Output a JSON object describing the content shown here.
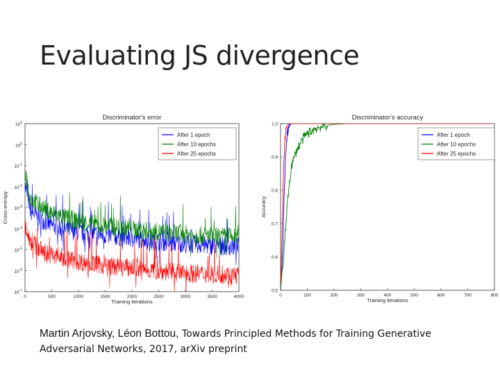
{
  "slide": {
    "title": "Evaluating JS divergence"
  },
  "citation": {
    "authors": "Martin Arjovsky, Léon Bottou,",
    "title_line1": " Towards Principled Methods for Training Generative",
    "title_line2": "Adversarial Networks, 2017, arXiv preprint"
  },
  "chart_data": [
    {
      "type": "line",
      "title": "Discriminator's error",
      "xlabel": "Training iterations",
      "ylabel": "Cross-entropy",
      "xlim": [
        0,
        4000
      ],
      "ylog": true,
      "ylim_exp": [
        -7,
        1
      ],
      "x_ticks": [
        "0",
        "500",
        "1000",
        "1500",
        "2000",
        "2500",
        "3000",
        "3500",
        "4000"
      ],
      "y_ticks": [
        "10^1",
        "10^0",
        "10^-1",
        "10^-2",
        "10^-3",
        "10^-4",
        "10^-5",
        "10^-6",
        "10^-7"
      ],
      "legend_position": "top-right",
      "series": [
        {
          "name": "After 1 epoch",
          "color": "#0000ff",
          "x": [
            0,
            100,
            250,
            500,
            1000,
            1500,
            2000,
            2500,
            3000,
            3500,
            4000
          ],
          "log10_values": [
            -2.0,
            -3.3,
            -3.6,
            -4.0,
            -4.3,
            -4.45,
            -4.6,
            -4.75,
            -4.85,
            -4.95,
            -5.0
          ]
        },
        {
          "name": "After 10 epochs",
          "color": "#008000",
          "x": [
            0,
            100,
            250,
            500,
            1000,
            1500,
            2000,
            2500,
            3000,
            3500,
            4000
          ],
          "log10_values": [
            -1.3,
            -2.7,
            -3.0,
            -3.4,
            -3.8,
            -4.0,
            -4.15,
            -4.3,
            -4.4,
            -4.5,
            -4.55
          ]
        },
        {
          "name": "After 25 epochs",
          "color": "#ff0000",
          "x": [
            0,
            100,
            250,
            500,
            1000,
            1500,
            2000,
            2500,
            3000,
            3500,
            4000
          ],
          "log10_values": [
            -4.0,
            -4.7,
            -5.1,
            -5.4,
            -5.7,
            -5.9,
            -6.0,
            -6.15,
            -6.25,
            -6.3,
            -6.35
          ]
        }
      ]
    },
    {
      "type": "line",
      "title": "Discriminator's accuracy",
      "xlabel": "Training iterations",
      "ylabel": "Accuracy",
      "xlim": [
        0,
        800
      ],
      "ylim": [
        0.5,
        1.0
      ],
      "x_ticks": [
        "0",
        "100",
        "200",
        "300",
        "400",
        "500",
        "600",
        "700",
        "800"
      ],
      "y_ticks": [
        "0.5",
        "0.6",
        "0.7",
        "0.8",
        "0.9",
        "1.0"
      ],
      "legend_position": "top-right",
      "series": [
        {
          "name": "After 1 epoch",
          "color": "#0000ff",
          "x": [
            0,
            5,
            10,
            15,
            20,
            25,
            30,
            40,
            60,
            800
          ],
          "values": [
            0.5,
            0.55,
            0.68,
            0.82,
            0.92,
            0.97,
            0.99,
            1.0,
            1.0,
            1.0
          ]
        },
        {
          "name": "After 10 epochs",
          "color": "#008000",
          "x": [
            0,
            10,
            20,
            30,
            40,
            60,
            80,
            100,
            130,
            160,
            200,
            250,
            800
          ],
          "values": [
            0.5,
            0.58,
            0.7,
            0.8,
            0.87,
            0.92,
            0.95,
            0.97,
            0.985,
            0.993,
            0.998,
            1.0,
            1.0
          ]
        },
        {
          "name": "After 25 epochs",
          "color": "#ff0000",
          "x": [
            0,
            4,
            8,
            12,
            16,
            20,
            25,
            35,
            800
          ],
          "values": [
            0.5,
            0.6,
            0.75,
            0.88,
            0.95,
            0.98,
            0.995,
            1.0,
            1.0
          ]
        }
      ]
    }
  ]
}
